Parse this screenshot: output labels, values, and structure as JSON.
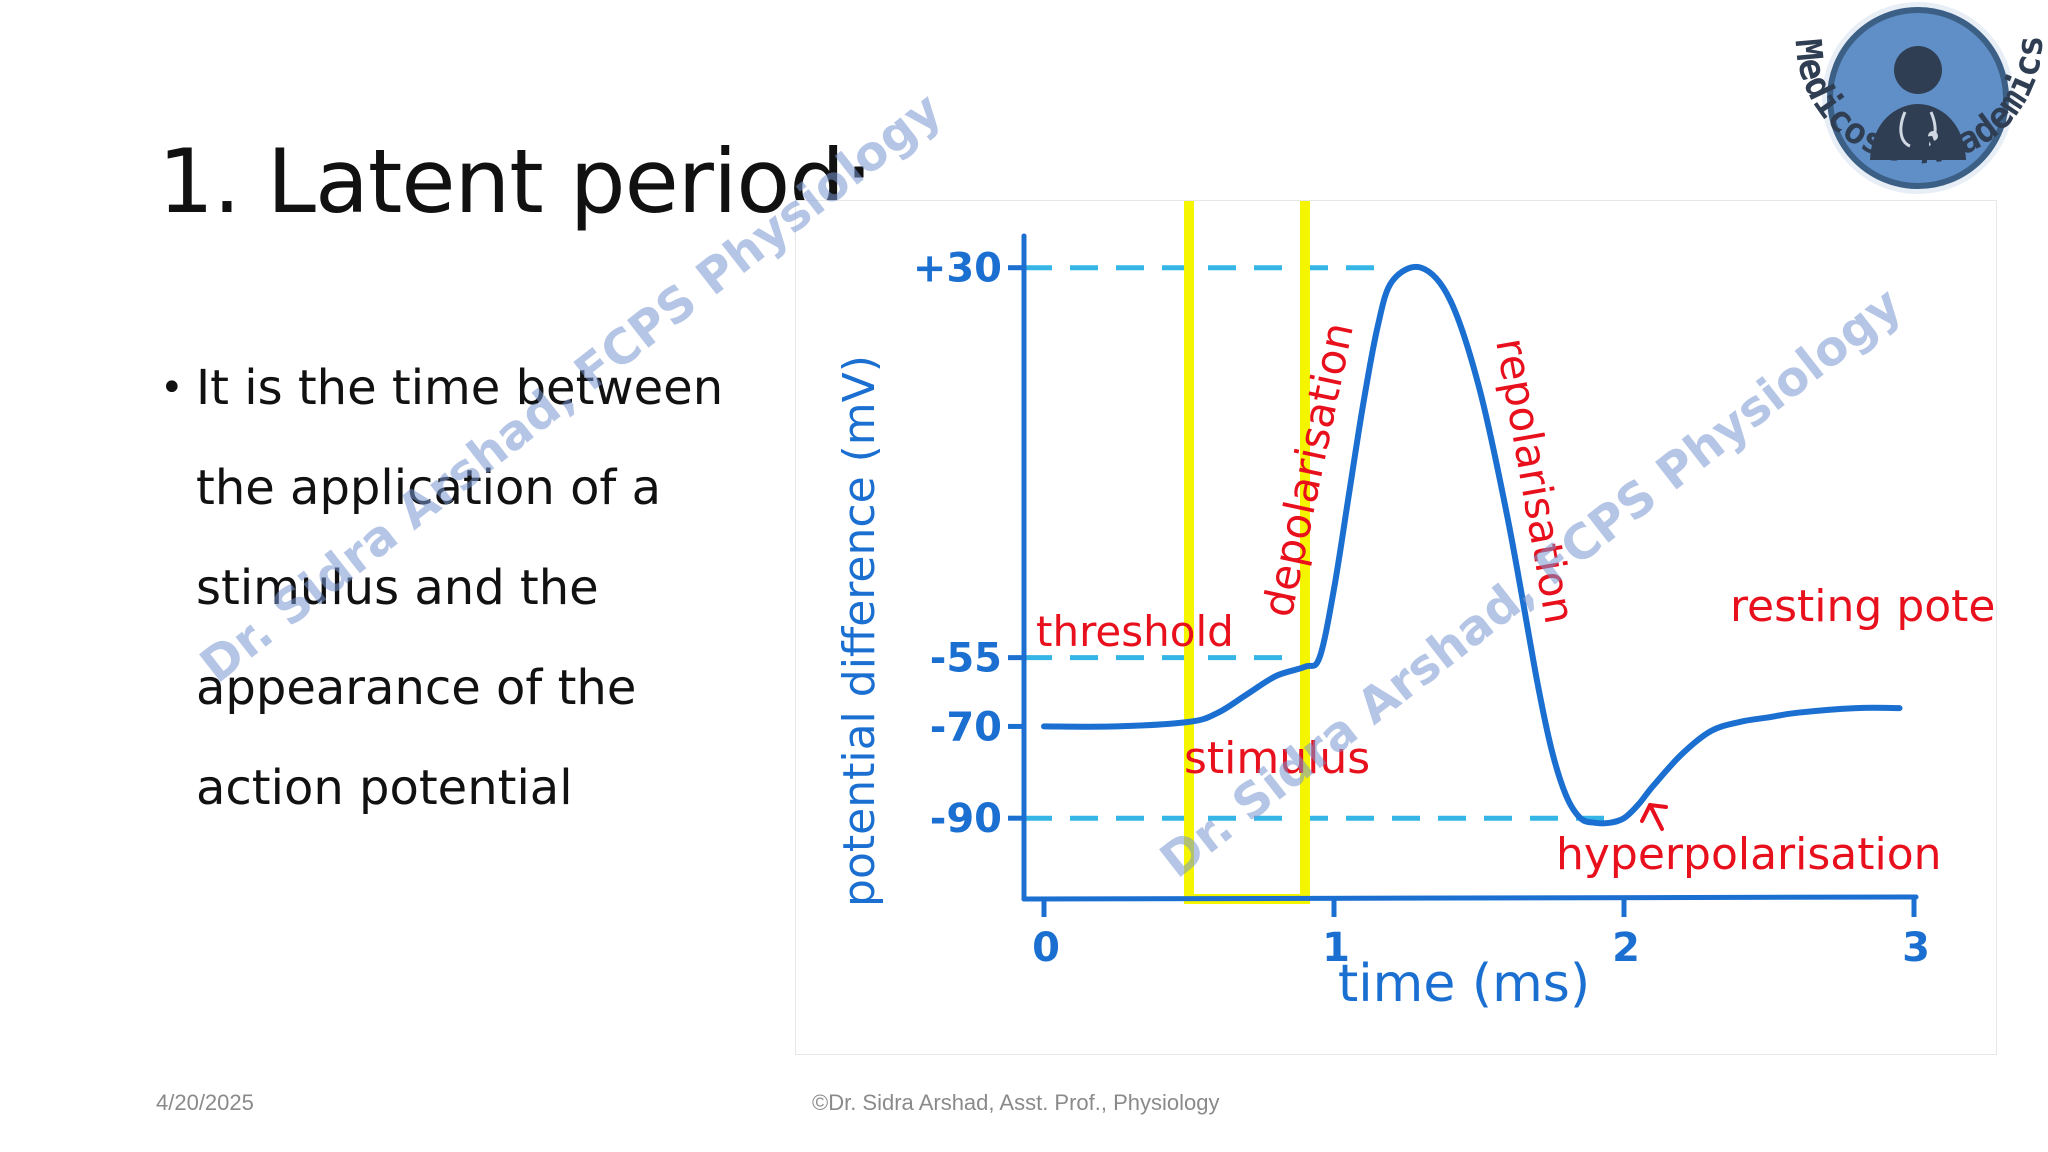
{
  "slide": {
    "title": "1. Latent period:",
    "bullets": [
      "It is the time between",
      "the application of a",
      "stimulus and the",
      "appearance of the",
      "action potential"
    ],
    "footer_date": "4/20/2025",
    "footer_credit": "©Dr. Sidra Arshad, Asst. Prof., Physiology",
    "watermark": "Dr. Sidra Arshad, FCPS Physiology",
    "logo_text": "Medicose Academics"
  },
  "colors": {
    "axis": "#1a6fd1",
    "dashed": "#34b5e5",
    "curve": "#1a6fd1",
    "annotation": "#e8101c",
    "highlight": "#f5f500"
  },
  "chart_data": {
    "type": "line",
    "xlabel": "time (ms)",
    "ylabel": "potential difference (mV)",
    "xlim": [
      0,
      3
    ],
    "ylim": [
      -105,
      38
    ],
    "x_ticks": [
      "0",
      "1",
      "2",
      "3"
    ],
    "y_ticks": [
      "+30",
      "-55",
      "-70",
      "-90"
    ],
    "y_tick_values": [
      30,
      -55,
      -70,
      -90
    ],
    "series": [
      {
        "x": [
          0,
          0.25,
          0.5,
          0.6,
          0.7,
          0.8,
          0.9,
          0.95,
          1.0,
          1.05,
          1.1,
          1.15,
          1.2,
          1.3,
          1.4,
          1.5,
          1.6,
          1.7,
          1.75,
          1.8,
          1.85,
          1.9,
          1.95,
          2.0,
          2.05,
          2.1,
          2.2,
          2.3,
          2.4,
          2.5,
          2.6,
          2.8,
          2.95
        ],
        "y": [
          -70,
          -70,
          -69,
          -67,
          -63,
          -59,
          -57,
          -55,
          -40,
          -20,
          0,
          17,
          27,
          30,
          23,
          4,
          -25,
          -60,
          -75,
          -85,
          -90,
          -91,
          -91,
          -90,
          -87,
          -83,
          -76,
          -71,
          -69,
          -68,
          -67,
          -66,
          -66
        ]
      }
    ],
    "reference_lines": [
      30,
      -55,
      -90
    ],
    "highlight_region_x": [
      0.5,
      0.9
    ],
    "annotations": [
      "threshold",
      "depolarisation",
      "repolarisation",
      "stimulus",
      "resting potential",
      "hyperpolarisation"
    ]
  }
}
